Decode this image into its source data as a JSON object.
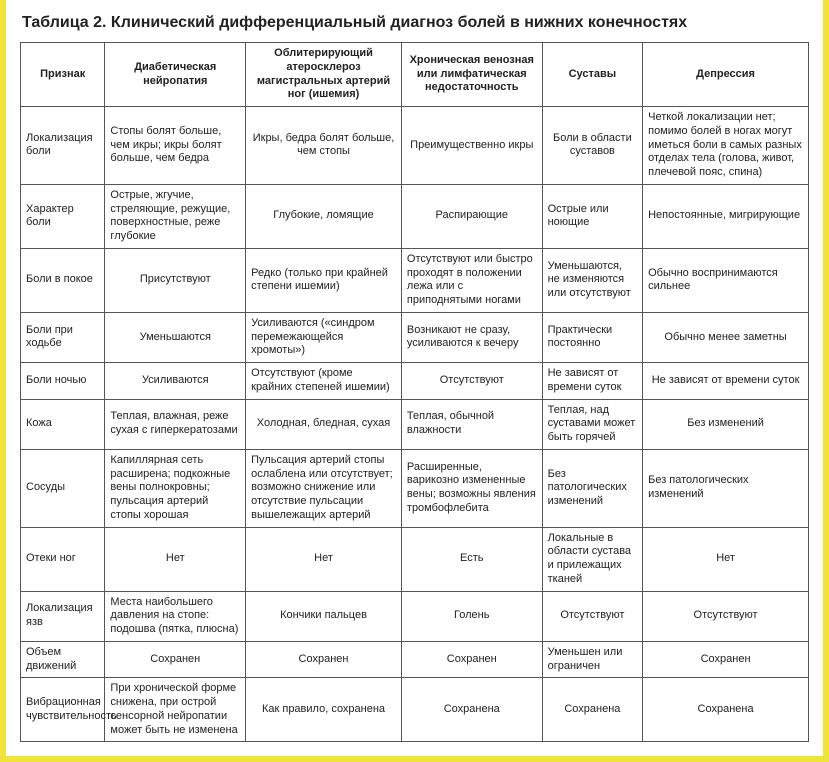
{
  "title": "Таблица 2. Клинический дифференциальный диагноз болей в нижних конечностях",
  "columns": [
    "Признак",
    "Диабетическая нейропатия",
    "Облитерирующий атеросклероз магистральных артерий ног (ишемия)",
    "Хроническая венозная или лимфатическая недостаточность",
    "Суставы",
    "Депрессия"
  ],
  "rows": [
    {
      "head": "Локализация боли",
      "cells": [
        "Стопы болят больше, чем икры; икры болят больше, чем бедра",
        "Икры, бедра болят больше, чем стопы",
        "Преимущественно икры",
        "Боли в области суставов",
        "Четкой локализации нет; помимо болей в ногах могут иметься боли в самых разных отделах тела (голова, живот, плечевой пояс, спина)"
      ]
    },
    {
      "head": "Характер боли",
      "cells": [
        "Острые, жгучие, стреляющие, режущие, поверхностные, реже глубокие",
        "Глубокие, ломящие",
        "Распирающие",
        "Острые или ноющие",
        "Непостоянные, мигрирующие"
      ]
    },
    {
      "head": "Боли в покое",
      "cells": [
        "Присутствуют",
        "Редко (только при крайней степени ишемии)",
        "Отсутствуют или быстро проходят в положении лежа или с приподнятыми ногами",
        "Уменьшаются, не изменяются или отсутствуют",
        "Обычно воспринимаются сильнее"
      ]
    },
    {
      "head": "Боли при ходьбе",
      "cells": [
        "Уменьшаются",
        "Усиливаются («синдром перемежающейся хромоты»)",
        "Возникают не сразу, усиливаются к вечеру",
        "Практически постоянно",
        "Обычно менее заметны"
      ]
    },
    {
      "head": "Боли ночью",
      "cells": [
        "Усиливаются",
        "Отсутствуют (кроме крайних степеней ишемии)",
        "Отсутствуют",
        "Не зависят от времени суток",
        "Не зависят от времени суток"
      ]
    },
    {
      "head": "Кожа",
      "cells": [
        "Теплая, влажная, реже сухая с гиперкератозами",
        "Холодная, бледная, сухая",
        "Теплая, обычной влажности",
        "Теплая, над суставами может быть горячей",
        "Без изменений"
      ]
    },
    {
      "head": "Сосуды",
      "cells": [
        "Капиллярная сеть расширена; подкожные вены полнокровны; пульсация артерий стопы хорошая",
        "Пульсация артерий стопы ослаблена или отсутствует; возможно снижение или отсутствие пульсации вышележащих артерий",
        "Расширенные, варикозно измененные вены; возможны явления тромбофлебита",
        "Без патологических изменений",
        "Без патологических изменений"
      ]
    },
    {
      "head": "Отеки ног",
      "cells": [
        "Нет",
        "Нет",
        "Есть",
        "Локальные в области сустава и прилежащих тканей",
        "Нет"
      ]
    },
    {
      "head": "Локализация язв",
      "cells": [
        "Места наибольшего давления на стопе: подошва (пятка, плюсна)",
        "Кончики пальцев",
        "Голень",
        "Отсутствуют",
        "Отсутствуют"
      ]
    },
    {
      "head": "Объем движений",
      "cells": [
        "Сохранен",
        "Сохранен",
        "Сохранен",
        "Уменьшен или ограничен",
        "Сохранен"
      ]
    },
    {
      "head": "Вибрационная чувствительность",
      "cells": [
        "При хронической форме снижена, при острой сенсорной нейропатии может быть не изменена",
        "Как правило, сохранена",
        "Сохранена",
        "Сохранена",
        "Сохранена"
      ]
    }
  ],
  "align": {
    "cell_default": "center",
    "left_cells": [
      [
        0,
        0
      ],
      [
        0,
        4
      ],
      [
        1,
        0
      ],
      [
        1,
        3
      ],
      [
        1,
        4
      ],
      [
        2,
        1
      ],
      [
        2,
        2
      ],
      [
        2,
        3
      ],
      [
        2,
        4
      ],
      [
        3,
        1
      ],
      [
        3,
        2
      ],
      [
        3,
        3
      ],
      [
        4,
        1
      ],
      [
        4,
        3
      ],
      [
        5,
        0
      ],
      [
        5,
        2
      ],
      [
        5,
        3
      ],
      [
        6,
        0
      ],
      [
        6,
        1
      ],
      [
        6,
        2
      ],
      [
        6,
        3
      ],
      [
        6,
        4
      ],
      [
        7,
        3
      ],
      [
        8,
        0
      ],
      [
        9,
        3
      ],
      [
        10,
        0
      ]
    ]
  }
}
